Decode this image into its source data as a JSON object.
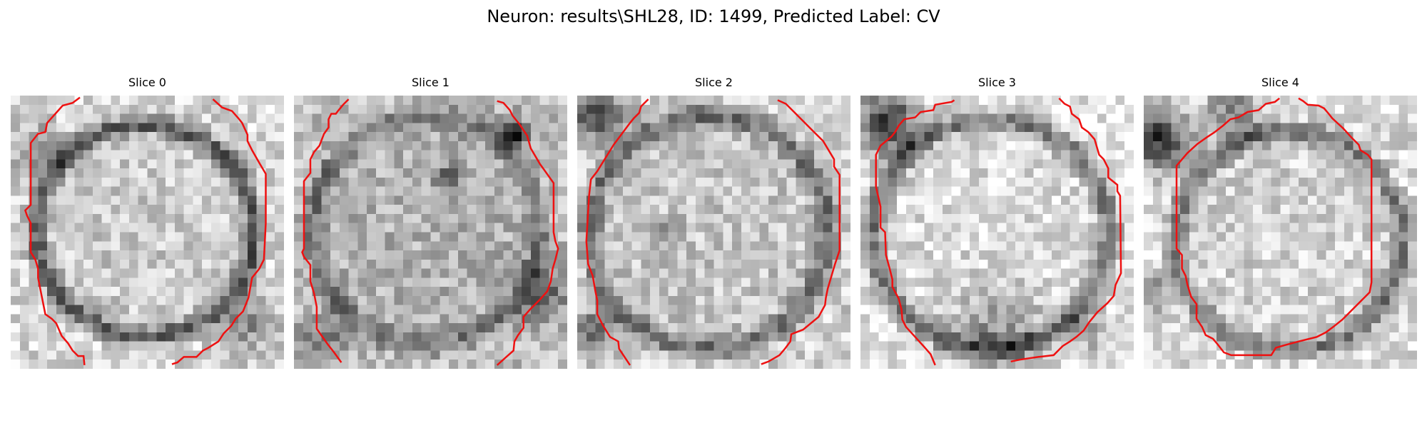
{
  "figure": {
    "title": "Neuron: results\\SHL28, ID: 1499, Predicted Label: CV"
  },
  "slices": [
    {
      "title": "Slice 0"
    },
    {
      "title": "Slice 1"
    },
    {
      "title": "Slice 2"
    },
    {
      "title": "Slice 3"
    },
    {
      "title": "Slice 4"
    }
  ],
  "colors": {
    "contour": "#ee1111",
    "background": "#ffffff"
  }
}
